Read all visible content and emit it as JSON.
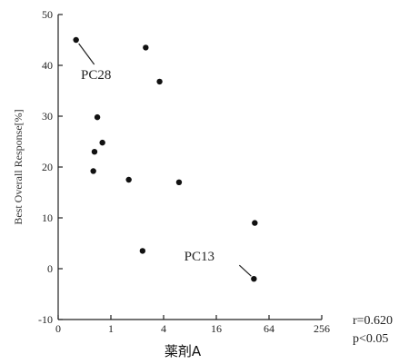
{
  "chart_data": {
    "type": "scatter",
    "title": "",
    "xlabel": "薬剤A",
    "ylabel": "Best Overall Response[%]",
    "x_scale": "log2",
    "xlim": [
      0.25,
      256
    ],
    "ylim": [
      -10,
      50
    ],
    "x_ticks": [
      0.25,
      1,
      4,
      16,
      64,
      256
    ],
    "x_tick_labels": [
      "0",
      "1",
      "4",
      "16",
      "64",
      "256"
    ],
    "y_ticks": [
      -10,
      0,
      10,
      20,
      30,
      40,
      50
    ],
    "y_tick_labels": [
      "-10",
      "0",
      "10",
      "20",
      "30",
      "40",
      "50"
    ],
    "grid": false,
    "points": [
      {
        "x": 0.4,
        "y": 45
      },
      {
        "x": 2.5,
        "y": 43.5
      },
      {
        "x": 3.6,
        "y": 36.8
      },
      {
        "x": 0.7,
        "y": 29.8
      },
      {
        "x": 0.8,
        "y": 24.8
      },
      {
        "x": 0.65,
        "y": 23
      },
      {
        "x": 0.63,
        "y": 19.2
      },
      {
        "x": 1.6,
        "y": 17.5
      },
      {
        "x": 6.0,
        "y": 17
      },
      {
        "x": 2.3,
        "y": 3.5
      },
      {
        "x": 44,
        "y": 9
      },
      {
        "x": 43,
        "y": -2
      }
    ],
    "annotations": [
      {
        "text": "PC28",
        "x": 0.4,
        "y": 45
      },
      {
        "text": "PC13",
        "x": 43,
        "y": -2
      }
    ],
    "stats": {
      "r": "r=0.620",
      "p": "p<0.05"
    }
  }
}
